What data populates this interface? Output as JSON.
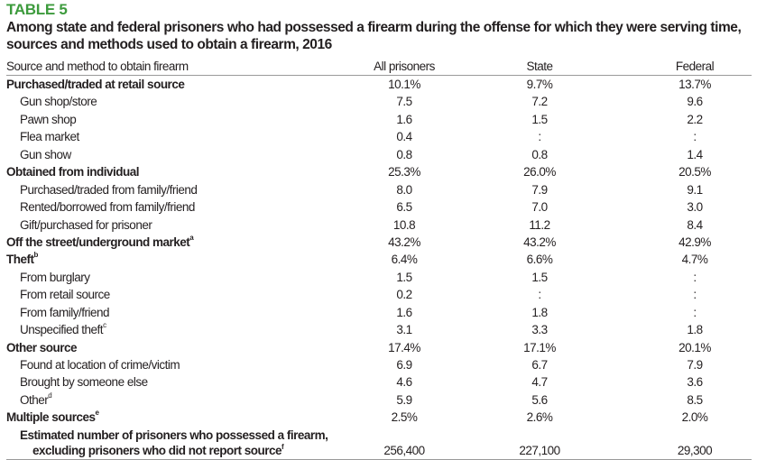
{
  "table_number": "TABLE 5",
  "title": "Among state and federal prisoners who had possessed a firearm during the offense for which they were serving time, sources and methods used to obtain a firearm, 2016",
  "columns": [
    "Source and method to obtain firearm",
    "All prisoners",
    "State",
    "Federal"
  ],
  "rows": [
    {
      "label": "Purchased/traded at retail source",
      "sup": "",
      "bold": true,
      "indent": false,
      "values": [
        "10.1%",
        "9.7%",
        "13.7%"
      ]
    },
    {
      "label": "Gun shop/store",
      "sup": "",
      "bold": false,
      "indent": true,
      "values": [
        "7.5",
        "7.2",
        "9.6"
      ]
    },
    {
      "label": "Pawn shop",
      "sup": "",
      "bold": false,
      "indent": true,
      "values": [
        "1.6",
        "1.5",
        "2.2"
      ]
    },
    {
      "label": "Flea market",
      "sup": "",
      "bold": false,
      "indent": true,
      "values": [
        "0.4",
        ":",
        ":"
      ]
    },
    {
      "label": "Gun show",
      "sup": "",
      "bold": false,
      "indent": true,
      "values": [
        "0.8",
        "0.8",
        "1.4"
      ]
    },
    {
      "label": "Obtained from individual",
      "sup": "",
      "bold": true,
      "indent": false,
      "values": [
        "25.3%",
        "26.0%",
        "20.5%"
      ]
    },
    {
      "label": "Purchased/traded from family/friend",
      "sup": "",
      "bold": false,
      "indent": true,
      "values": [
        "8.0",
        "7.9",
        "9.1"
      ]
    },
    {
      "label": "Rented/borrowed from family/friend",
      "sup": "",
      "bold": false,
      "indent": true,
      "values": [
        "6.5",
        "7.0",
        "3.0"
      ]
    },
    {
      "label": "Gift/purchased for prisoner",
      "sup": "",
      "bold": false,
      "indent": true,
      "values": [
        "10.8",
        "11.2",
        "8.4"
      ]
    },
    {
      "label": "Off the street/underground market",
      "sup": "a",
      "bold": true,
      "indent": false,
      "values": [
        "43.2%",
        "43.2%",
        "42.9%"
      ]
    },
    {
      "label": "Theft",
      "sup": "b",
      "bold": true,
      "indent": false,
      "values": [
        "6.4%",
        "6.6%",
        "4.7%"
      ]
    },
    {
      "label": "From burglary",
      "sup": "",
      "bold": false,
      "indent": true,
      "values": [
        "1.5",
        "1.5",
        ":"
      ]
    },
    {
      "label": "From retail source",
      "sup": "",
      "bold": false,
      "indent": true,
      "values": [
        "0.2",
        ":",
        ":"
      ]
    },
    {
      "label": "From family/friend",
      "sup": "",
      "bold": false,
      "indent": true,
      "values": [
        "1.6",
        "1.8",
        ":"
      ]
    },
    {
      "label": "Unspecified theft",
      "sup": "c",
      "bold": false,
      "indent": true,
      "values": [
        "3.1",
        "3.3",
        "1.8"
      ]
    },
    {
      "label": "Other source",
      "sup": "",
      "bold": true,
      "indent": false,
      "values": [
        "17.4%",
        "17.1%",
        "20.1%"
      ]
    },
    {
      "label": "Found at location of crime/victim",
      "sup": "",
      "bold": false,
      "indent": true,
      "values": [
        "6.9",
        "6.7",
        "7.9"
      ]
    },
    {
      "label": "Brought by someone else",
      "sup": "",
      "bold": false,
      "indent": true,
      "values": [
        "4.6",
        "4.7",
        "3.6"
      ]
    },
    {
      "label": "Other",
      "sup": "d",
      "bold": false,
      "indent": true,
      "values": [
        "5.9",
        "5.6",
        "8.5"
      ]
    },
    {
      "label": "Multiple sources",
      "sup": "e",
      "bold": true,
      "indent": false,
      "values": [
        "2.5%",
        "2.6%",
        "2.0%"
      ]
    }
  ],
  "total_row": {
    "label_line1": "Estimated number of prisoners who possessed a firearm,",
    "label_line2": "excluding prisoners who did not report source",
    "sup": "f",
    "values": [
      "256,400",
      "227,100",
      "29,300"
    ]
  }
}
